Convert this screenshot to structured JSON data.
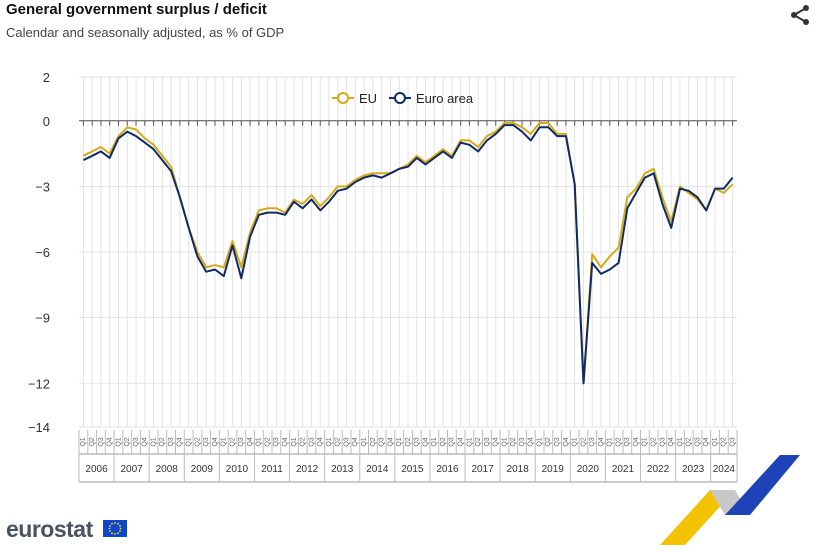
{
  "header": {
    "title": "General government surplus / deficit",
    "subtitle": "Calendar and seasonally adjusted, as % of GDP"
  },
  "icons": {
    "share": "share-icon"
  },
  "brand": {
    "logo_text": "eurostat"
  },
  "colors": {
    "eu": "#d4aa19",
    "euro_area": "#0f2a66",
    "grid": "#e3e3e3"
  },
  "chart_data": {
    "type": "line",
    "title": "General government surplus / deficit",
    "subtitle": "Calendar and seasonally adjusted, as % of GDP",
    "xlabel": "",
    "ylabel": "",
    "ylim": [
      -14,
      2
    ],
    "yticks": [
      2,
      0,
      -3,
      -6,
      -9,
      -12,
      -14
    ],
    "years": [
      "2006",
      "2007",
      "2008",
      "2009",
      "2010",
      "2011",
      "2012",
      "2013",
      "2014",
      "2015",
      "2016",
      "2017",
      "2018",
      "2019",
      "2020",
      "2021",
      "2022",
      "2023",
      "2024"
    ],
    "quarter_labels": [
      "Q1",
      "Q2",
      "Q3",
      "Q4"
    ],
    "x": [
      "2006Q1",
      "2006Q2",
      "2006Q3",
      "2006Q4",
      "2007Q1",
      "2007Q2",
      "2007Q3",
      "2007Q4",
      "2008Q1",
      "2008Q2",
      "2008Q3",
      "2008Q4",
      "2009Q1",
      "2009Q2",
      "2009Q3",
      "2009Q4",
      "2010Q1",
      "2010Q2",
      "2010Q3",
      "2010Q4",
      "2011Q1",
      "2011Q2",
      "2011Q3",
      "2011Q4",
      "2012Q1",
      "2012Q2",
      "2012Q3",
      "2012Q4",
      "2013Q1",
      "2013Q2",
      "2013Q3",
      "2013Q4",
      "2014Q1",
      "2014Q2",
      "2014Q3",
      "2014Q4",
      "2015Q1",
      "2015Q2",
      "2015Q3",
      "2015Q4",
      "2016Q1",
      "2016Q2",
      "2016Q3",
      "2016Q4",
      "2017Q1",
      "2017Q2",
      "2017Q3",
      "2017Q4",
      "2018Q1",
      "2018Q2",
      "2018Q3",
      "2018Q4",
      "2019Q1",
      "2019Q2",
      "2019Q3",
      "2019Q4",
      "2020Q1",
      "2020Q2",
      "2020Q3",
      "2020Q4",
      "2021Q1",
      "2021Q2",
      "2021Q3",
      "2021Q4",
      "2022Q1",
      "2022Q2",
      "2022Q3",
      "2022Q4",
      "2023Q1",
      "2023Q2",
      "2023Q3",
      "2023Q4",
      "2024Q1",
      "2024Q2",
      "2024Q3"
    ],
    "legend_position": "top-center",
    "grid": true,
    "series": [
      {
        "name": "EU",
        "values": [
          -1.6,
          -1.4,
          -1.2,
          -1.5,
          -0.7,
          -0.3,
          -0.4,
          -0.8,
          -1.1,
          -1.6,
          -2.1,
          -3.5,
          -4.9,
          -6.0,
          -6.7,
          -6.6,
          -6.7,
          -5.5,
          -6.7,
          -5.1,
          -4.1,
          -4.0,
          -4.0,
          -4.2,
          -3.6,
          -3.8,
          -3.4,
          -3.9,
          -3.5,
          -3.0,
          -3.0,
          -2.7,
          -2.5,
          -2.4,
          -2.4,
          -2.4,
          -2.2,
          -2.0,
          -1.6,
          -1.9,
          -1.6,
          -1.3,
          -1.6,
          -0.9,
          -0.9,
          -1.2,
          -0.7,
          -0.5,
          -0.1,
          -0.1,
          -0.3,
          -0.6,
          -0.1,
          -0.1,
          -0.6,
          -0.6,
          -2.9,
          -12.0,
          -6.1,
          -6.7,
          -6.2,
          -5.8,
          -3.5,
          -3.1,
          -2.4,
          -2.2,
          -3.5,
          -4.6,
          -3.0,
          -3.3,
          -3.6,
          -4.1,
          -3.1,
          -3.3,
          -2.9
        ]
      },
      {
        "name": "Euro area",
        "values": [
          -1.8,
          -1.6,
          -1.4,
          -1.7,
          -0.8,
          -0.5,
          -0.7,
          -1.0,
          -1.3,
          -1.8,
          -2.3,
          -3.5,
          -4.9,
          -6.2,
          -6.9,
          -6.8,
          -7.1,
          -5.7,
          -7.2,
          -5.3,
          -4.3,
          -4.2,
          -4.2,
          -4.3,
          -3.7,
          -4.0,
          -3.6,
          -4.1,
          -3.7,
          -3.2,
          -3.1,
          -2.8,
          -2.6,
          -2.5,
          -2.6,
          -2.4,
          -2.2,
          -2.1,
          -1.7,
          -2.0,
          -1.7,
          -1.4,
          -1.7,
          -1.0,
          -1.1,
          -1.4,
          -0.9,
          -0.6,
          -0.2,
          -0.2,
          -0.5,
          -0.9,
          -0.3,
          -0.3,
          -0.7,
          -0.7,
          -2.9,
          -12.0,
          -6.5,
          -7.0,
          -6.8,
          -6.5,
          -4.0,
          -3.3,
          -2.6,
          -2.4,
          -3.8,
          -4.9,
          -3.1,
          -3.2,
          -3.5,
          -4.1,
          -3.1,
          -3.1,
          -2.6
        ]
      }
    ]
  }
}
